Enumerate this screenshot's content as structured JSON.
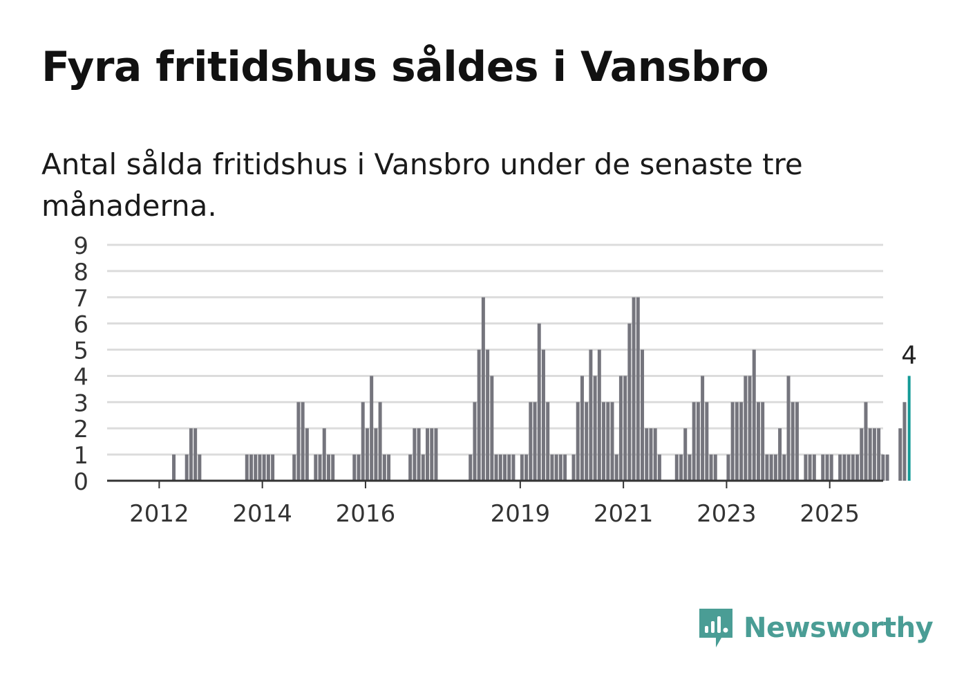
{
  "title": "Fyra fritidshus såldes i Vansbro",
  "subtitle": "Antal sålda fritidshus i Vansbro under de senaste tre månaderna.",
  "brand": {
    "name": "Newsworthy",
    "logo_icon": "newsworthy-logo-icon",
    "color": "#4a9d95"
  },
  "colors": {
    "bar": "#75757d",
    "highlight": "#149a96",
    "grid": "#dcdcdc",
    "axis": "#333333",
    "text": "#333333"
  },
  "chart_data": {
    "type": "bar",
    "title": "",
    "xlabel": "",
    "ylabel": "",
    "ylim": [
      0,
      9
    ],
    "yticks": [
      0,
      1,
      2,
      3,
      4,
      5,
      6,
      7,
      8,
      9
    ],
    "xticks": [
      "2012",
      "2014",
      "2016",
      "2019",
      "2021",
      "2023",
      "2025"
    ],
    "grid": true,
    "start": "2011-05",
    "values": [
      0,
      0,
      0,
      0,
      0,
      0,
      0,
      0,
      0,
      0,
      0,
      1,
      0,
      0,
      1,
      2,
      2,
      1,
      0,
      0,
      0,
      0,
      0,
      0,
      0,
      0,
      0,
      0,
      1,
      1,
      1,
      1,
      1,
      1,
      1,
      0,
      0,
      0,
      0,
      1,
      3,
      3,
      2,
      0,
      1,
      1,
      2,
      1,
      1,
      0,
      0,
      0,
      0,
      1,
      1,
      3,
      2,
      4,
      2,
      3,
      1,
      1,
      0,
      0,
      0,
      0,
      1,
      2,
      2,
      1,
      2,
      2,
      2,
      0,
      0,
      0,
      0,
      0,
      0,
      0,
      1,
      3,
      5,
      7,
      5,
      4,
      1,
      1,
      1,
      1,
      1,
      0,
      1,
      1,
      3,
      3,
      6,
      5,
      3,
      1,
      1,
      1,
      1,
      0,
      1,
      3,
      4,
      3,
      5,
      4,
      5,
      3,
      3,
      3,
      1,
      4,
      4,
      6,
      7,
      7,
      5,
      2,
      2,
      2,
      1,
      0,
      0,
      0,
      1,
      1,
      2,
      1,
      3,
      3,
      4,
      3,
      1,
      1,
      0,
      0,
      1,
      3,
      3,
      3,
      4,
      4,
      5,
      3,
      3,
      1,
      1,
      1,
      2,
      1,
      4,
      3,
      3,
      0,
      1,
      1,
      1,
      0,
      1,
      1,
      1,
      0,
      1,
      1,
      1,
      1,
      1,
      2,
      3,
      2,
      2,
      2,
      1,
      1,
      0,
      0,
      2,
      3,
      4
    ],
    "highlight_label": "4"
  }
}
